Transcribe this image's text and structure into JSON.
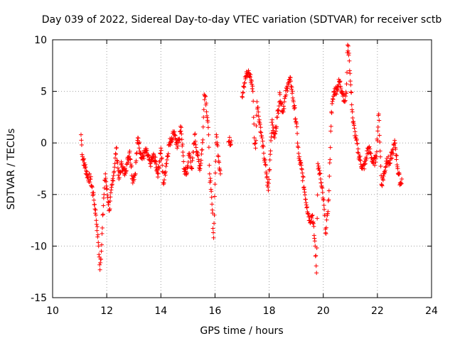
{
  "chart_data": {
    "type": "scatter",
    "title": "Day 039 of 2022, Sidereal Day-to-day VTEC variation (SDTVAR) for receiver sctb",
    "xlabel": "GPS time / hours",
    "ylabel": "SDTVAR / TECUs",
    "xlim": [
      10,
      24
    ],
    "ylim": [
      -15,
      10
    ],
    "x_ticks": [
      10,
      12,
      14,
      16,
      18,
      20,
      22,
      24
    ],
    "y_ticks": [
      -15,
      -10,
      -5,
      0,
      5,
      10
    ],
    "x_tick_labels": [
      "10",
      "12",
      "14",
      "16",
      "18",
      "20",
      "22",
      "24"
    ],
    "y_tick_labels": [
      "-15",
      "-10",
      "-5",
      "0",
      "5",
      "10"
    ],
    "grid": true,
    "marker": "+",
    "color": "#ff0000",
    "series": [
      {
        "name": "sctb",
        "keypoints": [
          [
            11.05,
            0.8
          ],
          [
            11.1,
            -1.3
          ],
          [
            11.3,
            -3.3
          ],
          [
            11.4,
            -3.5
          ],
          [
            11.5,
            -5
          ],
          [
            11.6,
            -7
          ],
          [
            11.7,
            -10
          ],
          [
            11.75,
            -12.3
          ],
          [
            11.8,
            -10.5
          ],
          [
            11.85,
            -7
          ],
          [
            11.9,
            -5
          ],
          [
            11.95,
            -3
          ],
          [
            12.0,
            -4.5
          ],
          [
            12.1,
            -6.5
          ],
          [
            12.2,
            -4
          ],
          [
            12.3,
            -2
          ],
          [
            12.35,
            -0.5
          ],
          [
            12.45,
            -3.5
          ],
          [
            12.55,
            -2
          ],
          [
            12.65,
            -3
          ],
          [
            12.75,
            -2
          ],
          [
            12.85,
            -0.8
          ],
          [
            12.95,
            -3.5
          ],
          [
            13.05,
            -3
          ],
          [
            13.15,
            0.5
          ],
          [
            13.3,
            -1.5
          ],
          [
            13.45,
            -0.8
          ],
          [
            13.6,
            -2
          ],
          [
            13.75,
            -1.3
          ],
          [
            13.9,
            -3
          ],
          [
            14.0,
            -0.5
          ],
          [
            14.1,
            -4
          ],
          [
            14.2,
            -2
          ],
          [
            14.3,
            -0.2
          ],
          [
            14.4,
            0.5
          ],
          [
            14.5,
            1.1
          ],
          [
            14.6,
            -0.5
          ],
          [
            14.75,
            1.5
          ],
          [
            14.85,
            -2.5
          ],
          [
            14.95,
            -3
          ],
          [
            15.05,
            -1
          ],
          [
            15.15,
            -2.5
          ],
          [
            15.25,
            0.8
          ],
          [
            15.35,
            -1.2
          ],
          [
            15.45,
            -2.5
          ],
          [
            15.55,
            0.3
          ],
          [
            15.6,
            4.7
          ],
          [
            15.65,
            4.5
          ],
          [
            15.75,
            1.5
          ],
          [
            15.8,
            -3
          ],
          [
            15.85,
            -4.5
          ],
          [
            15.9,
            -6.5
          ],
          [
            15.95,
            -9.2
          ],
          [
            16.0,
            -4
          ],
          [
            16.05,
            0.8
          ],
          [
            16.2,
            -3
          ],
          [
            16.5,
            0.1
          ],
          [
            16.6,
            0.2
          ],
          [
            17.0,
            4.5
          ],
          [
            17.05,
            5.5
          ],
          [
            17.15,
            6.5
          ],
          [
            17.25,
            6.8
          ],
          [
            17.35,
            6
          ],
          [
            17.4,
            5
          ],
          [
            17.45,
            0.5
          ],
          [
            17.5,
            -0.5
          ],
          [
            17.55,
            4
          ],
          [
            17.6,
            3
          ],
          [
            17.7,
            1
          ],
          [
            17.8,
            -1
          ],
          [
            17.9,
            -3
          ],
          [
            17.97,
            -4.6
          ],
          [
            18.1,
            2
          ],
          [
            18.2,
            0.5
          ],
          [
            18.3,
            2.5
          ],
          [
            18.4,
            4.7
          ],
          [
            18.5,
            3
          ],
          [
            18.6,
            4.5
          ],
          [
            18.7,
            5.8
          ],
          [
            18.8,
            6
          ],
          [
            18.9,
            4
          ],
          [
            19.0,
            2
          ],
          [
            19.1,
            -1.5
          ],
          [
            19.2,
            -2.5
          ],
          [
            19.3,
            -4.5
          ],
          [
            19.4,
            -6.2
          ],
          [
            19.5,
            -7.5
          ],
          [
            19.6,
            -7
          ],
          [
            19.7,
            -10
          ],
          [
            19.75,
            -12.6
          ],
          [
            19.8,
            -2
          ],
          [
            19.9,
            -3.5
          ],
          [
            20.0,
            -5.5
          ],
          [
            20.05,
            -7
          ],
          [
            20.1,
            -8.8
          ],
          [
            20.15,
            -7
          ],
          [
            20.2,
            -5.5
          ],
          [
            20.3,
            3
          ],
          [
            20.4,
            5
          ],
          [
            20.5,
            5.2
          ],
          [
            20.6,
            6
          ],
          [
            20.7,
            5
          ],
          [
            20.8,
            4
          ],
          [
            20.85,
            4.8
          ],
          [
            20.9,
            9.5
          ],
          [
            20.95,
            8.7
          ],
          [
            21.0,
            6
          ],
          [
            21.1,
            2
          ],
          [
            21.2,
            0.5
          ],
          [
            21.3,
            -1
          ],
          [
            21.45,
            -2.5
          ],
          [
            21.55,
            -2
          ],
          [
            21.65,
            -0.5
          ],
          [
            21.75,
            -1
          ],
          [
            21.85,
            -2
          ],
          [
            21.95,
            -1.5
          ],
          [
            22.05,
            2.8
          ],
          [
            22.15,
            -4
          ],
          [
            22.25,
            -3
          ],
          [
            22.35,
            -1.5
          ],
          [
            22.45,
            -2
          ],
          [
            22.55,
            -1
          ],
          [
            22.65,
            0
          ],
          [
            22.75,
            -2.5
          ],
          [
            22.85,
            -4
          ],
          [
            22.9,
            -3.5
          ]
        ]
      }
    ]
  }
}
